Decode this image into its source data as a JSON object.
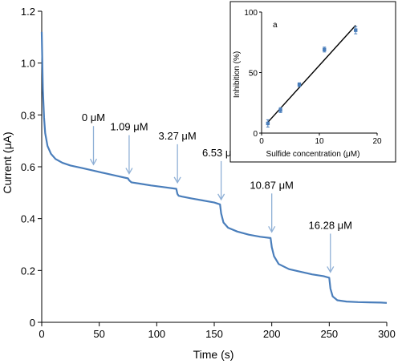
{
  "chart_data": [
    {
      "type": "line",
      "xlabel": "Time (s)",
      "ylabel": "Current (μA)",
      "xlim": [
        0,
        300
      ],
      "ylim": [
        0,
        1.2
      ],
      "xticks": [
        0,
        50,
        100,
        150,
        200,
        250,
        300
      ],
      "xtick_labels": [
        "0",
        "50",
        "100",
        "150",
        "200",
        "250",
        "300"
      ],
      "yticks": [
        0,
        0.2,
        0.4,
        0.6,
        0.8,
        1.0,
        1.2
      ],
      "ytick_labels": [
        "0",
        "0.2",
        "0.4",
        "0.6",
        "0.8",
        "1.0",
        "1.2"
      ],
      "grid": false,
      "line_color": "#4a7ebb",
      "series": [
        {
          "x": [
            0,
            1,
            2,
            3,
            5,
            8,
            12,
            18,
            25,
            35,
            45,
            55,
            65,
            75,
            76,
            78,
            85,
            95,
            105,
            117,
            118,
            119,
            122,
            130,
            140,
            150,
            155,
            156,
            158,
            162,
            170,
            180,
            190,
            199,
            200,
            202,
            206,
            215,
            225,
            235,
            245,
            250,
            251,
            253,
            257,
            265,
            275,
            285,
            295,
            300
          ],
          "y": [
            1.12,
            0.9,
            0.79,
            0.73,
            0.68,
            0.65,
            0.63,
            0.615,
            0.605,
            0.595,
            0.585,
            0.575,
            0.565,
            0.555,
            0.548,
            0.54,
            0.535,
            0.528,
            0.522,
            0.515,
            0.495,
            0.488,
            0.485,
            0.478,
            0.47,
            0.462,
            0.455,
            0.42,
            0.385,
            0.365,
            0.35,
            0.338,
            0.33,
            0.325,
            0.29,
            0.255,
            0.225,
            0.205,
            0.195,
            0.185,
            0.178,
            0.172,
            0.13,
            0.1,
            0.085,
            0.08,
            0.078,
            0.077,
            0.076,
            0.075
          ]
        }
      ],
      "annotations": [
        {
          "text": "0 μM",
          "x": 45,
          "tip_y": 0.59
        },
        {
          "text": "1.09 μM",
          "x": 76,
          "tip_y": 0.555
        },
        {
          "text": "3.27 μM",
          "x": 118,
          "tip_y": 0.52
        },
        {
          "text": "6.53 μM",
          "x": 156,
          "tip_y": 0.455
        },
        {
          "text": "10.87 μM",
          "x": 200,
          "tip_y": 0.33
        },
        {
          "text": "16.28 μM",
          "x": 251,
          "tip_y": 0.175
        }
      ]
    },
    {
      "type": "scatter",
      "label": "a",
      "xlabel": "Sulfide concentration (μM)",
      "ylabel": "Inhibition (%)",
      "xlim": [
        0,
        20
      ],
      "ylim": [
        0,
        100
      ],
      "xticks": [
        0,
        10,
        20
      ],
      "xtick_labels": [
        "0",
        "10",
        "20"
      ],
      "yticks": [
        0,
        50,
        100
      ],
      "ytick_labels": [
        "0",
        "50",
        "100"
      ],
      "marker_color": "#4a7ebb",
      "points": [
        {
          "x": 1.09,
          "y": 8,
          "err": 3
        },
        {
          "x": 3.27,
          "y": 19,
          "err": 2
        },
        {
          "x": 6.53,
          "y": 40,
          "err": 1.5
        },
        {
          "x": 10.87,
          "y": 69,
          "err": 2
        },
        {
          "x": 16.28,
          "y": 85,
          "err": 3
        }
      ],
      "fit_line": {
        "x": [
          1.09,
          16.28
        ],
        "y": [
          9,
          89
        ]
      }
    }
  ]
}
